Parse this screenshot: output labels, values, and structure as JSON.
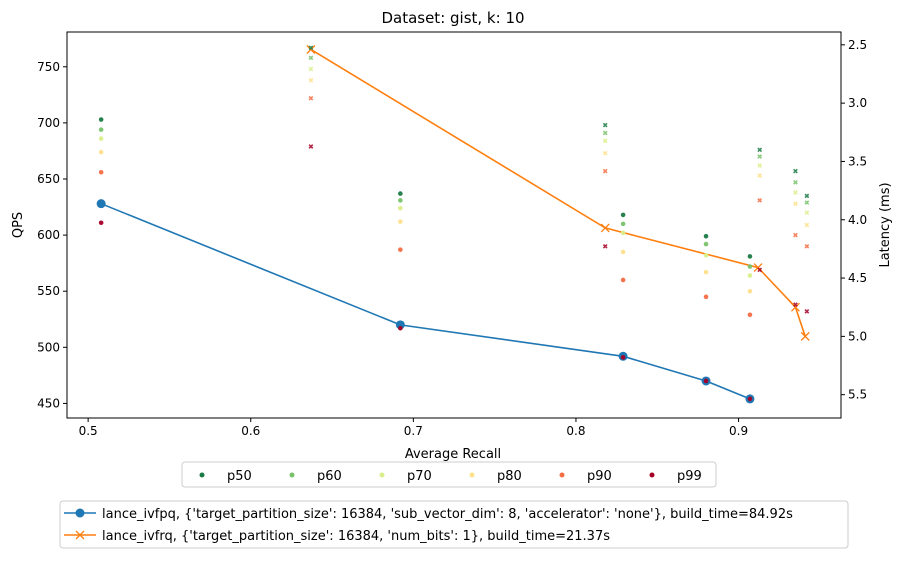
{
  "chart_data": {
    "type": "scatter",
    "title": "Dataset: gist, k: 10",
    "xlabel": "Average Recall",
    "ylabel": "QPS",
    "ylabel_right": "Latency (ms)",
    "xlim": [
      0.487,
      0.963
    ],
    "ylim": [
      437,
      781
    ],
    "ylim_right": [
      5.7,
      2.39
    ],
    "right_axis_inverted": true,
    "grid": false,
    "x_ticks": [
      "0.5",
      "0.6",
      "0.7",
      "0.8",
      "0.9"
    ],
    "y_ticks": [
      "450",
      "500",
      "550",
      "600",
      "650",
      "700",
      "750"
    ],
    "y_right_ticks": [
      "2.5",
      "3.0",
      "3.5",
      "4.0",
      "4.5",
      "5.0",
      "5.5"
    ],
    "series": [
      {
        "name": "lance_ivfpq, {'target_partition_size': 16384, 'sub_vector_dim': 8, 'accelerator': 'none'}, build_time=84.92s",
        "axis": "left",
        "marker": "circle",
        "color": "#1f77b4",
        "x": [
          0.508,
          0.692,
          0.829,
          0.88,
          0.907
        ],
        "y": [
          628,
          520,
          492,
          470,
          454
        ]
      },
      {
        "name": "lance_ivfrq, {'target_partition_size': 16384, 'num_bits': 1}, build_time=21.37s",
        "axis": "right",
        "marker": "x",
        "color": "#ff7f0e",
        "x": [
          0.637,
          0.818,
          0.912,
          0.935,
          0.941
        ],
        "y": [
          2.54,
          4.07,
          4.41,
          4.75,
          5.0
        ]
      }
    ],
    "percentiles": {
      "legend_position": "below-center",
      "labels": [
        "p50",
        "p60",
        "p70",
        "p80",
        "p90",
        "p99"
      ],
      "colors": [
        "#1a7a44",
        "#78c26a",
        "#d9ef8b",
        "#fee08b",
        "#f46d43",
        "#a50026"
      ],
      "ivfpq": {
        "x": [
          0.508,
          0.692,
          0.829,
          0.88,
          0.907
        ],
        "values": [
          [
            703,
            694,
            686,
            674,
            656,
            611
          ],
          [
            637,
            631,
            624,
            612,
            587,
            517
          ],
          [
            618,
            610,
            602,
            585,
            560,
            491
          ],
          [
            599,
            592,
            582,
            567,
            545,
            470
          ],
          [
            581,
            572,
            564,
            550,
            529,
            454
          ]
        ]
      },
      "ivfrq": {
        "x": [
          0.637,
          0.818,
          0.913,
          0.935,
          0.942
        ],
        "values": [
          [
            767,
            758,
            748,
            738,
            722,
            679
          ],
          [
            698,
            691,
            684,
            673,
            657,
            590
          ],
          [
            676,
            670,
            662,
            653,
            631,
            569
          ],
          [
            657,
            647,
            638,
            628,
            600,
            538
          ],
          [
            635,
            629,
            620,
            609,
            590,
            532
          ]
        ]
      }
    }
  }
}
